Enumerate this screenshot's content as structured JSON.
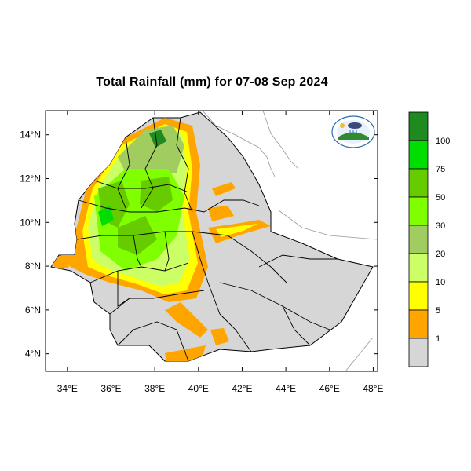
{
  "title": "Total Rainfall (mm) for 07-08 Sep 2024",
  "map": {
    "lon_range": [
      33,
      48.2
    ],
    "lat_range": [
      3.2,
      15.1
    ],
    "x_ticks": [
      "34°E",
      "36°E",
      "38°E",
      "40°E",
      "42°E",
      "44°E",
      "46°E",
      "48°E"
    ],
    "x_tick_values": [
      34,
      36,
      38,
      40,
      42,
      44,
      46,
      48
    ],
    "y_ticks": [
      "14°N",
      "12°N",
      "10°N",
      "8°N",
      "6°N",
      "4°N"
    ],
    "y_tick_values": [
      14,
      12,
      10,
      8,
      6,
      4
    ],
    "land_color": "#d6d6d6",
    "border_color": "#000000"
  },
  "legend": {
    "labels": [
      "100",
      "75",
      "50",
      "30",
      "20",
      "10",
      "5",
      "1"
    ],
    "colors": [
      "#1f8a1f",
      "#00dd00",
      "#66cc00",
      "#80ff00",
      "#a0cc60",
      "#ccff66",
      "#ffff00",
      "#ffa500",
      "#d6d6d6"
    ]
  },
  "logo": {
    "icon_name": "meteorology-agency-logo"
  }
}
